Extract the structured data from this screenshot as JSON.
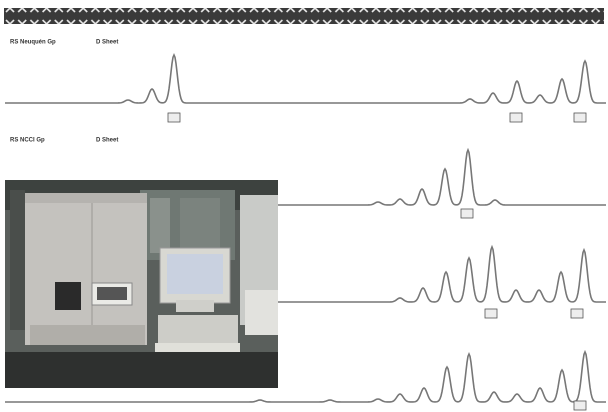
{
  "panels": [
    {
      "label": "RS Neuquén Gp",
      "sublabel": "D Sheet"
    },
    {
      "label": "RS NCCI Gp",
      "sublabel": "D Sheet"
    }
  ]
}
